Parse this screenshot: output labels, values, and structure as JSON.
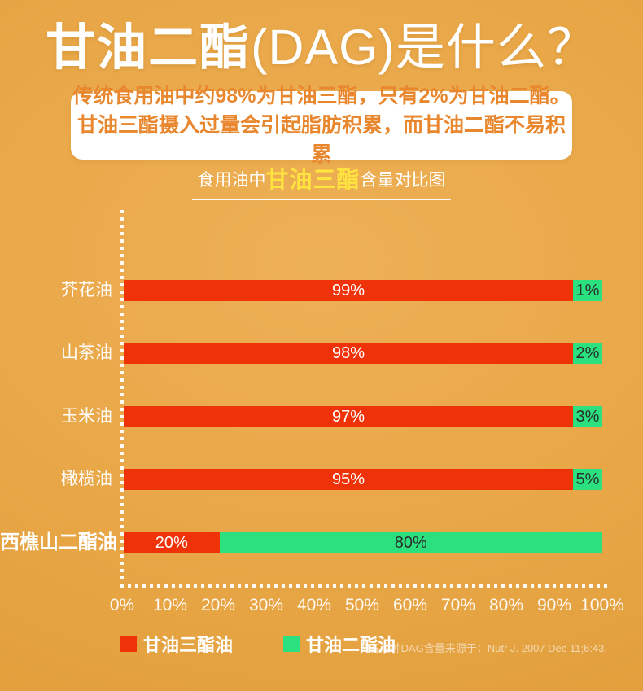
{
  "title": {
    "bold": "甘油二酯",
    "light": "(DAG)是什么？"
  },
  "intro_box": {
    "line1": "传统食用油中约98%为甘油三酯，只有2%为甘油二酯。",
    "line2": "甘油三酯摄入过量会引起脂肪积累，而甘油二酯不易积累"
  },
  "chart_heading": {
    "prefix": "食用油中",
    "highlight": "甘油三酯",
    "suffix": "含量对比图"
  },
  "chart_data": {
    "type": "bar",
    "orientation": "horizontal",
    "title": "食用油中甘油三酯含量对比图",
    "categories": [
      "芥花油",
      "山茶油",
      "玉米油",
      "橄榄油",
      "西樵山二酯油"
    ],
    "series": [
      {
        "name": "甘油三酯油",
        "color": "#f03208",
        "values": [
          99,
          98,
          97,
          95,
          20
        ]
      },
      {
        "name": "甘油二酯油",
        "color": "#2be07e",
        "values": [
          1,
          2,
          3,
          5,
          80
        ]
      }
    ],
    "value_suffix": "%",
    "x_ticks": [
      "0%",
      "10%",
      "20%",
      "30%",
      "40%",
      "50%",
      "60%",
      "70%",
      "80%",
      "90%",
      "100%"
    ],
    "xlim": [
      0,
      100
    ],
    "grid": false,
    "legend_position": "bottom-left",
    "highlight_category": "西樵山二酯油",
    "axis_style": "white-dotted"
  },
  "legend": {
    "items": [
      {
        "label": "甘油三酯油",
        "color": "#f03208"
      },
      {
        "label": "甘油二酯油",
        "color": "#2be07e"
      }
    ]
  },
  "footnote": {
    "text": "**各油种DAG含量来源于：Nutr J. 2007 Dec 11;6:43."
  },
  "colors": {
    "background": "#e8a646",
    "bar_red": "#f03208",
    "bar_green": "#2be07e",
    "intro_box_bg": "#ffffff",
    "intro_box_text": "#e8872d",
    "heading_highlight": "#ffe33f",
    "axis_white": "#ffffff"
  }
}
